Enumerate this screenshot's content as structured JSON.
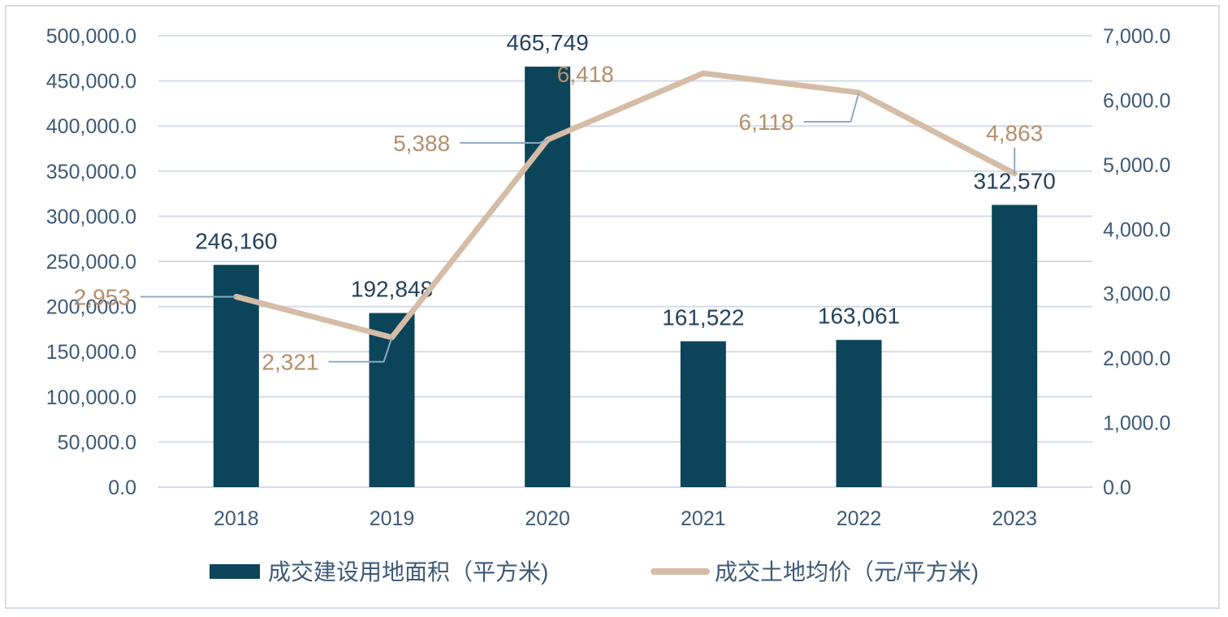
{
  "chart_data": {
    "type": "bar",
    "categories": [
      "2018",
      "2019",
      "2020",
      "2021",
      "2022",
      "2023"
    ],
    "series": [
      {
        "name": "成交建设用地面积（平方米)",
        "type": "bar",
        "axis": "left",
        "color": "#0c4559",
        "values": [
          246160,
          192848,
          465749,
          161522,
          163061,
          312570
        ],
        "labels": [
          "246,160",
          "192,848",
          "465,749",
          "161,522",
          "163,061",
          "312,570"
        ]
      },
      {
        "name": "成交土地均价（元/平方米)",
        "type": "line",
        "axis": "right",
        "color": "#d5bca7",
        "values": [
          2953,
          2321,
          5388,
          6418,
          6118,
          4863
        ],
        "labels": [
          "2,953",
          "2,321",
          "5,388",
          "6,418",
          "6,118",
          "4,863"
        ]
      }
    ],
    "y_left": {
      "range": [
        0,
        500000
      ],
      "ticks": [
        "0.0",
        "50,000.0",
        "100,000.0",
        "150,000.0",
        "200,000.0",
        "250,000.0",
        "300,000.0",
        "350,000.0",
        "400,000.0",
        "450,000.0",
        "500,000.0"
      ]
    },
    "y_right": {
      "range": [
        0,
        7000
      ],
      "ticks": [
        "0.0",
        "1,000.0",
        "2,000.0",
        "3,000.0",
        "4,000.0",
        "5,000.0",
        "6,000.0",
        "7,000.0"
      ]
    },
    "grid": true,
    "legend_position": "bottom",
    "colors": {
      "grid": "#d3dbe8",
      "axis_text": "#3d5a77",
      "bar_label": "#24425c",
      "line_label": "#b58f6c",
      "leader": "#8faac4"
    }
  }
}
